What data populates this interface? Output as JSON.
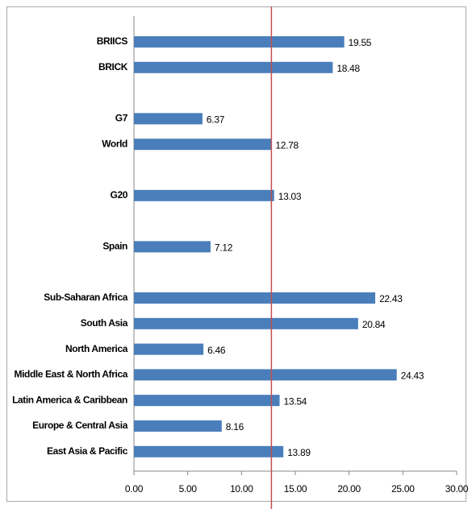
{
  "chart_data": {
    "type": "barh",
    "categories": [
      "BRIICS",
      "BRICK",
      null,
      "G7",
      "World",
      null,
      "G20",
      null,
      "Spain",
      null,
      "Sub-Saharan Africa",
      "South Asia",
      "North America",
      "Middle East & North Africa",
      "Latin America & Caribbean",
      "Europe & Central Asia",
      "East Asia & Pacific"
    ],
    "values": [
      19.55,
      18.48,
      null,
      6.37,
      12.78,
      null,
      13.03,
      null,
      7.12,
      null,
      22.43,
      20.84,
      6.46,
      24.43,
      13.54,
      8.16,
      13.89
    ],
    "color": "#4a7ebb",
    "xlim": [
      0,
      30
    ],
    "xticks": [
      {
        "value": 0,
        "label": "0.00"
      },
      {
        "value": 5,
        "label": "5.00"
      },
      {
        "value": 10,
        "label": "10.00"
      },
      {
        "value": 15,
        "label": "15.00"
      },
      {
        "value": 20,
        "label": "20.00"
      },
      {
        "value": 25,
        "label": "25.00"
      },
      {
        "value": 30,
        "label": "30.00"
      }
    ],
    "reference_line": {
      "value": 12.78,
      "color": "#c0504d"
    }
  }
}
